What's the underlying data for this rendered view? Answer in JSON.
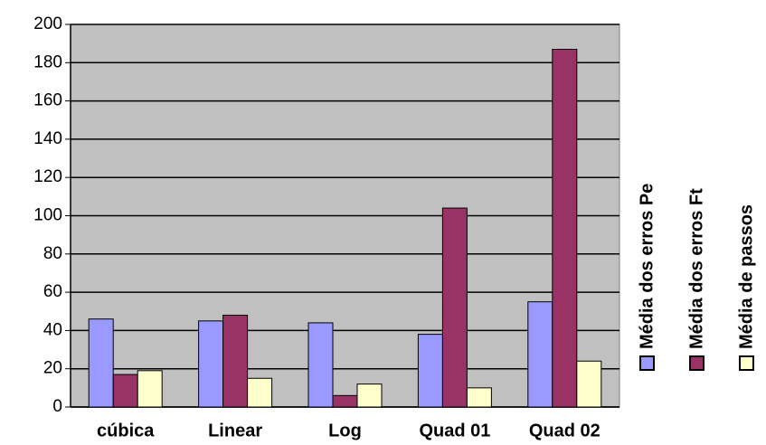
{
  "chart_data": {
    "type": "bar",
    "categories": [
      "cúbica",
      "Linear",
      "Log",
      "Quad 01",
      "Quad 02"
    ],
    "series": [
      {
        "name": "Média dos erros Pe",
        "color": "#9999ff",
        "values": [
          46,
          45,
          44,
          38,
          55
        ]
      },
      {
        "name": "Média dos erros Ft",
        "color": "#993366",
        "values": [
          17,
          48,
          6,
          104,
          187
        ]
      },
      {
        "name": "Média de passos",
        "color": "#ffffcc",
        "values": [
          19,
          15,
          12,
          10,
          24
        ]
      }
    ],
    "ylim": [
      0,
      200
    ],
    "yticks": [
      0,
      20,
      40,
      60,
      80,
      100,
      120,
      140,
      160,
      180,
      200
    ],
    "grid": true,
    "legend": "right",
    "plot_background": "#c0c0c0"
  }
}
